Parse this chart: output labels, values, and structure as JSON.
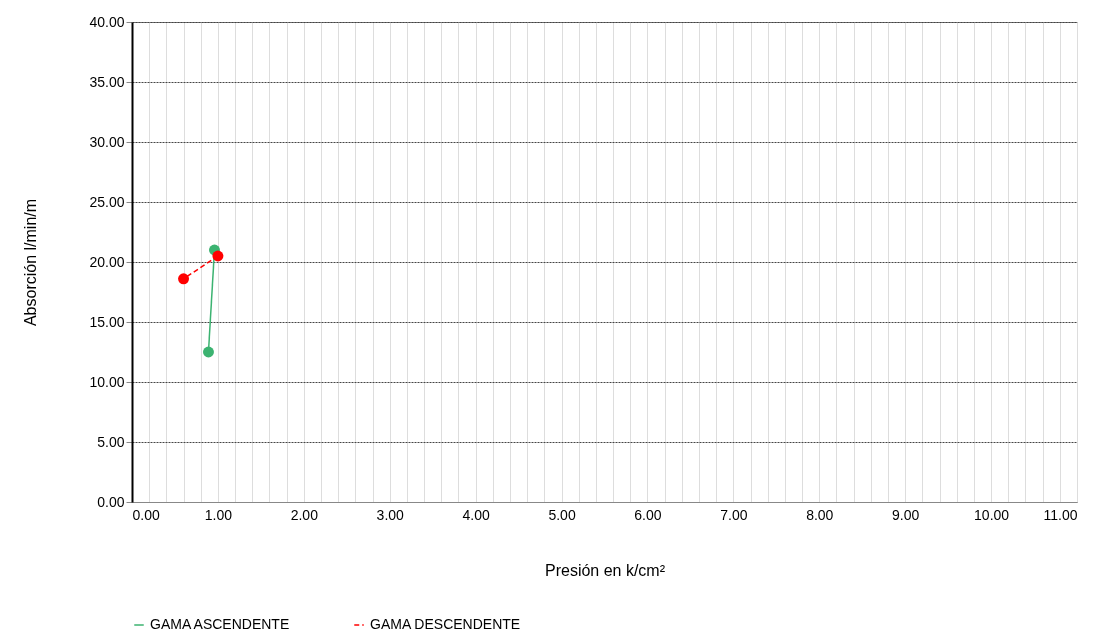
{
  "chart_data": {
    "type": "line",
    "xlabel": "Presión en k/cm²",
    "ylabel": "Absorción l/min/m",
    "xlim": [
      0,
      11
    ],
    "ylim": [
      0,
      40
    ],
    "xticks": [
      {
        "value": 0,
        "label": "0.00"
      },
      {
        "value": 1,
        "label": "1.00"
      },
      {
        "value": 2,
        "label": "2.00"
      },
      {
        "value": 3,
        "label": "3.00"
      },
      {
        "value": 4,
        "label": "4.00"
      },
      {
        "value": 5,
        "label": "5.00"
      },
      {
        "value": 6,
        "label": "6.00"
      },
      {
        "value": 7,
        "label": "7.00"
      },
      {
        "value": 8,
        "label": "8.00"
      },
      {
        "value": 9,
        "label": "9.00"
      },
      {
        "value": 10,
        "label": "10.00"
      },
      {
        "value": 11,
        "label": "11.00"
      }
    ],
    "yticks": [
      {
        "value": 0,
        "label": "0.00"
      },
      {
        "value": 5,
        "label": "5.00"
      },
      {
        "value": 10,
        "label": "10.00"
      },
      {
        "value": 15,
        "label": "15.00"
      },
      {
        "value": 20,
        "label": "20.00"
      },
      {
        "value": 25,
        "label": "25.00"
      },
      {
        "value": 30,
        "label": "30.00"
      },
      {
        "value": 35,
        "label": "35.00"
      },
      {
        "value": 40,
        "label": "40.00"
      }
    ],
    "grid": true,
    "legend": "bottom",
    "marker": "circle",
    "series": [
      {
        "name": "GAMA ASCENDENTE",
        "color": "#3cb371",
        "x": [
          0.89,
          0.96
        ],
        "values": [
          12.5,
          21.0
        ],
        "line_style": "solid"
      },
      {
        "name": "GAMA DESCENDENTE",
        "color": "#ff0000",
        "x": [
          1.0,
          0.6
        ],
        "values": [
          20.5,
          18.6
        ],
        "line_style": "dashed"
      }
    ]
  }
}
